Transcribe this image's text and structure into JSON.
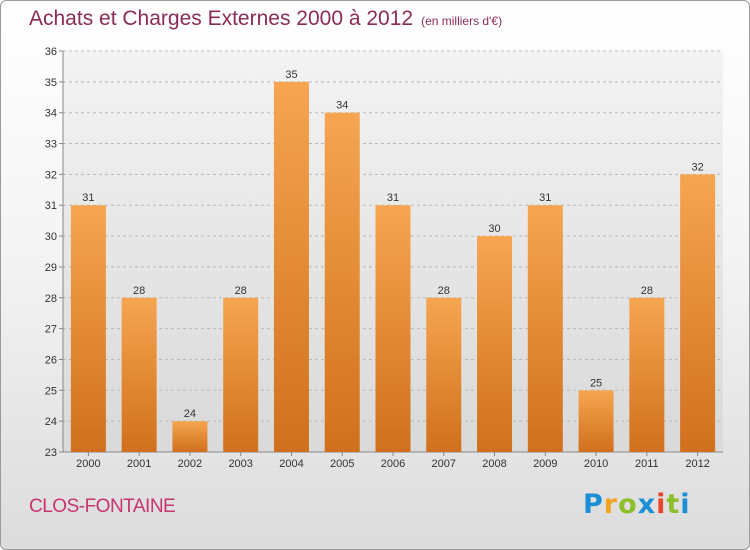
{
  "header": {
    "title": "Achats et Charges Externes 2000 à 2012",
    "subtitle": "(en milliers d'€)"
  },
  "footer": {
    "commune": "CLOS-FONTAINE",
    "logo_letters": [
      "P",
      "r",
      "o",
      "x",
      "i",
      "t",
      "i"
    ]
  },
  "colors": {
    "bar_top": "#f6a550",
    "bar_bottom": "#d0701d",
    "title": "#8b2b57",
    "commune": "#c8346f"
  },
  "chart_data": {
    "type": "bar",
    "title": "Achats et Charges Externes 2000 à 2012",
    "subtitle": "(en milliers d'€)",
    "xlabel": "",
    "ylabel": "",
    "categories": [
      "2000",
      "2001",
      "2002",
      "2003",
      "2004",
      "2005",
      "2006",
      "2007",
      "2008",
      "2009",
      "2010",
      "2011",
      "2012"
    ],
    "values": [
      31,
      28,
      24,
      28,
      35,
      34,
      31,
      28,
      30,
      31,
      25,
      28,
      32
    ],
    "ylim": [
      23,
      36
    ],
    "yticks": [
      23,
      24,
      25,
      26,
      27,
      28,
      29,
      30,
      31,
      32,
      33,
      34,
      35,
      36
    ],
    "grid": "horizontal dashed",
    "legend": "none"
  }
}
